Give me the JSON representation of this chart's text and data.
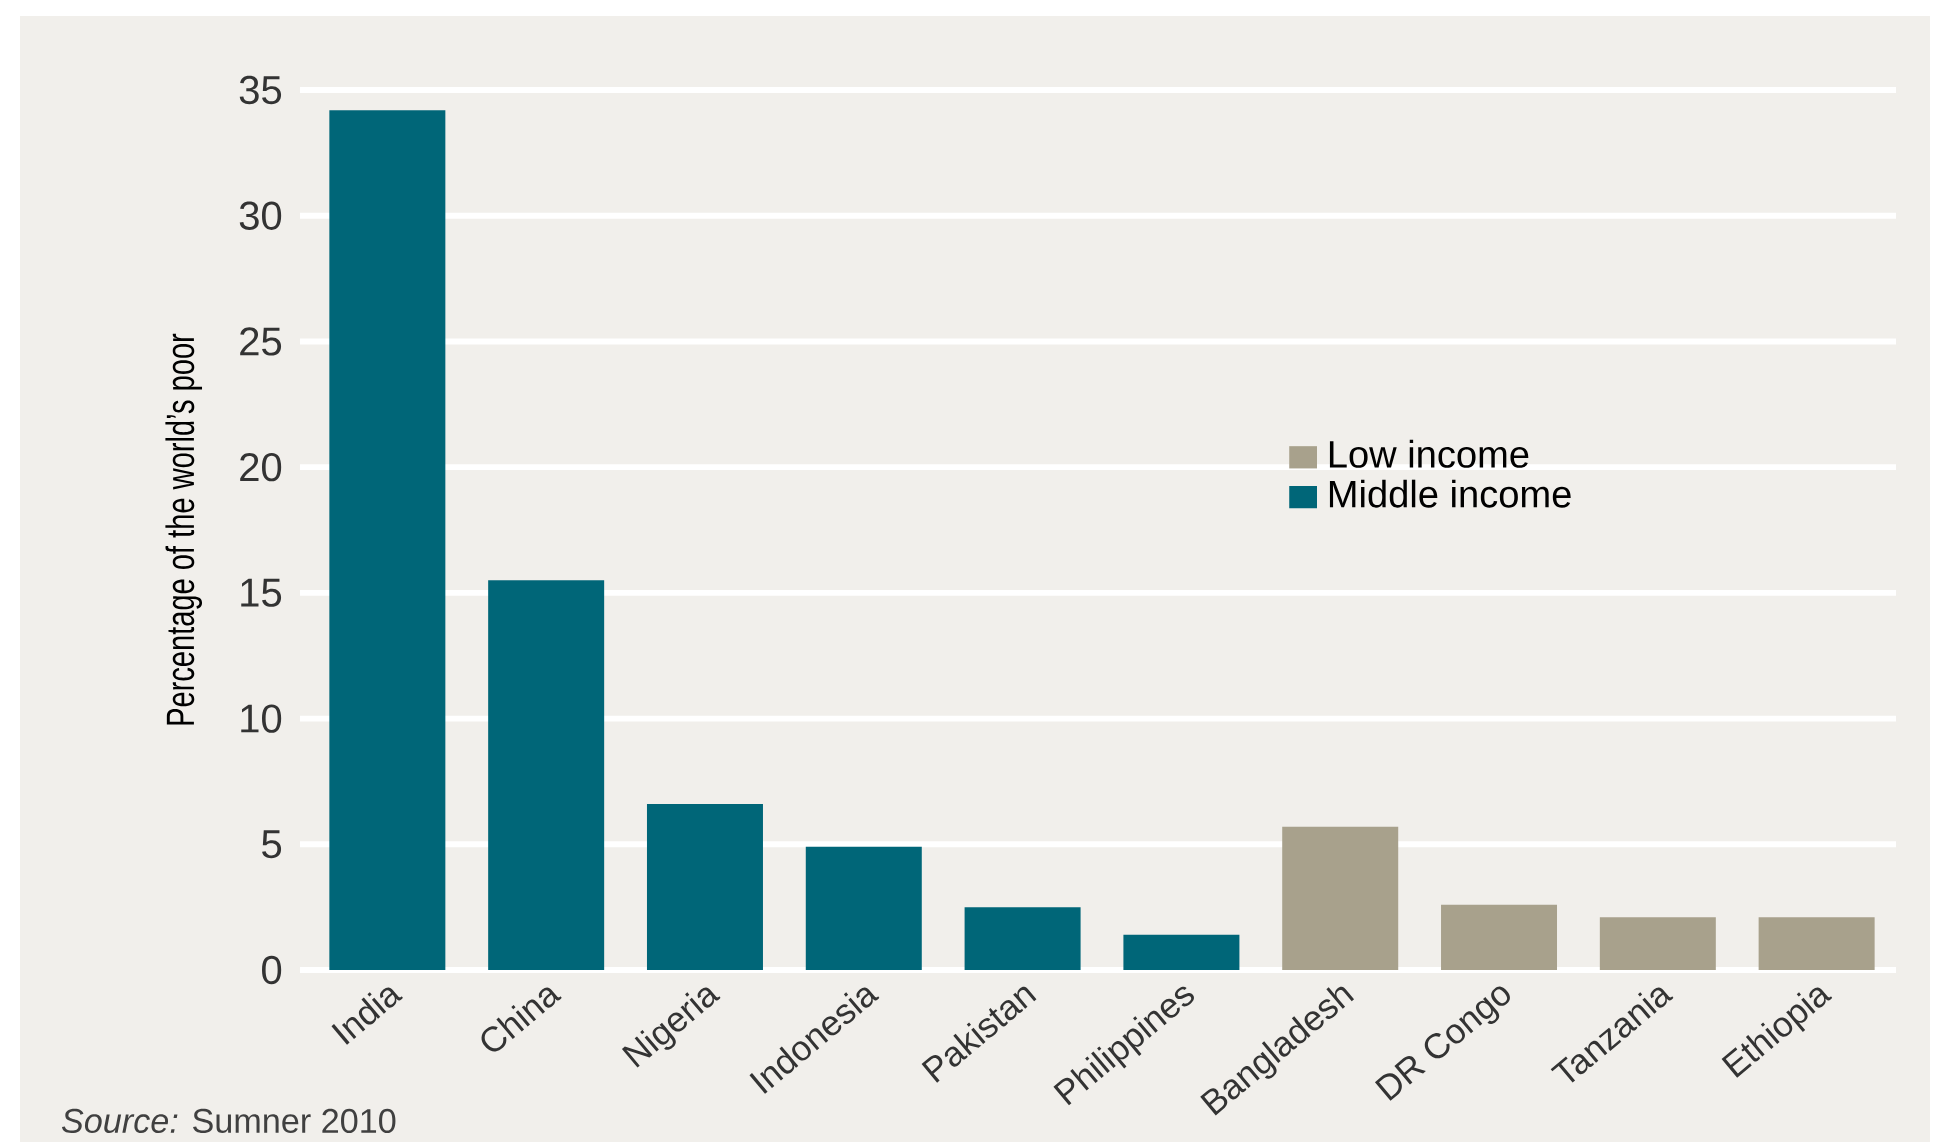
{
  "chart_data": {
    "type": "bar",
    "ylabel": "Percentage of the world’s poor",
    "categories": [
      "India",
      "China",
      "Nigeria",
      "Indonesia",
      "Pakistan",
      "Philippines",
      "Bangladesh",
      "DR Congo",
      "Tanzania",
      "Ethiopia"
    ],
    "series": [
      {
        "name": "Low income",
        "color": "#a8a18c",
        "values": [
          null,
          null,
          null,
          null,
          null,
          null,
          5.7,
          2.6,
          2.1,
          2.1
        ]
      },
      {
        "name": "Middle income",
        "color": "#006678",
        "values": [
          34.2,
          15.5,
          6.6,
          4.9,
          2.5,
          1.4,
          null,
          null,
          null,
          null
        ]
      }
    ],
    "ylim": [
      0,
      35
    ],
    "yticks": [
      0,
      5,
      10,
      15,
      20,
      25,
      30,
      35
    ],
    "grid": "y",
    "legend": "right",
    "annotations": [
      "*Source:* Sumner 2010"
    ]
  }
}
